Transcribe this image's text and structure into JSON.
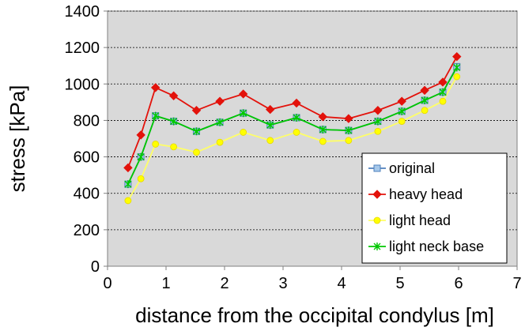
{
  "chart_data": {
    "type": "line",
    "xlabel": "distance from the occipital condylus [m]",
    "ylabel": "stress [kPa]",
    "xlim": [
      0,
      7
    ],
    "ylim": [
      0,
      1400
    ],
    "xticks": [
      "0",
      "1",
      "2",
      "3",
      "4",
      "5",
      "6",
      "7"
    ],
    "yticks": [
      "0",
      "200",
      "400",
      "600",
      "800",
      "1000",
      "1200",
      "1400"
    ],
    "grid": "horizontal dashed",
    "plot_background": "#d9d9d9",
    "legend_placement": "bottom-right",
    "series": [
      {
        "name": "original",
        "color": "#4f81bd",
        "marker": "square",
        "marker_fill": "#a6c8ea",
        "x": [
          0.35,
          0.57,
          0.82,
          1.13,
          1.52,
          1.92,
          2.32,
          2.78,
          3.23,
          3.68,
          4.12,
          4.62,
          5.03,
          5.42,
          5.73,
          5.97
        ],
        "y": [
          450,
          600,
          825,
          795,
          740,
          790,
          840,
          775,
          815,
          750,
          745,
          795,
          850,
          910,
          955,
          1095
        ]
      },
      {
        "name": "heavy head",
        "color": "#e3120b",
        "marker": "diamond",
        "marker_fill": "#e3120b",
        "x": [
          0.35,
          0.57,
          0.82,
          1.13,
          1.52,
          1.92,
          2.32,
          2.78,
          3.23,
          3.68,
          4.12,
          4.62,
          5.03,
          5.42,
          5.73,
          5.97
        ],
        "y": [
          540,
          720,
          980,
          935,
          855,
          905,
          945,
          860,
          895,
          820,
          810,
          855,
          905,
          965,
          1010,
          1150
        ]
      },
      {
        "name": "light head",
        "color": "#ffff66",
        "marker": "circle",
        "marker_fill": "#ffff00",
        "x": [
          0.35,
          0.57,
          0.82,
          1.13,
          1.52,
          1.92,
          2.32,
          2.78,
          3.23,
          3.68,
          4.12,
          4.62,
          5.03,
          5.42,
          5.73,
          5.97
        ],
        "y": [
          360,
          480,
          670,
          655,
          625,
          680,
          735,
          690,
          735,
          685,
          690,
          740,
          795,
          855,
          905,
          1040
        ]
      },
      {
        "name": "light neck base",
        "color": "#00c800",
        "marker": "star",
        "marker_fill": "#00c800",
        "x": [
          0.35,
          0.57,
          0.82,
          1.13,
          1.52,
          1.92,
          2.32,
          2.78,
          3.23,
          3.68,
          4.12,
          4.62,
          5.03,
          5.42,
          5.73,
          5.97
        ],
        "y": [
          450,
          600,
          825,
          795,
          740,
          790,
          840,
          775,
          815,
          750,
          745,
          795,
          850,
          910,
          955,
          1090
        ]
      }
    ]
  }
}
